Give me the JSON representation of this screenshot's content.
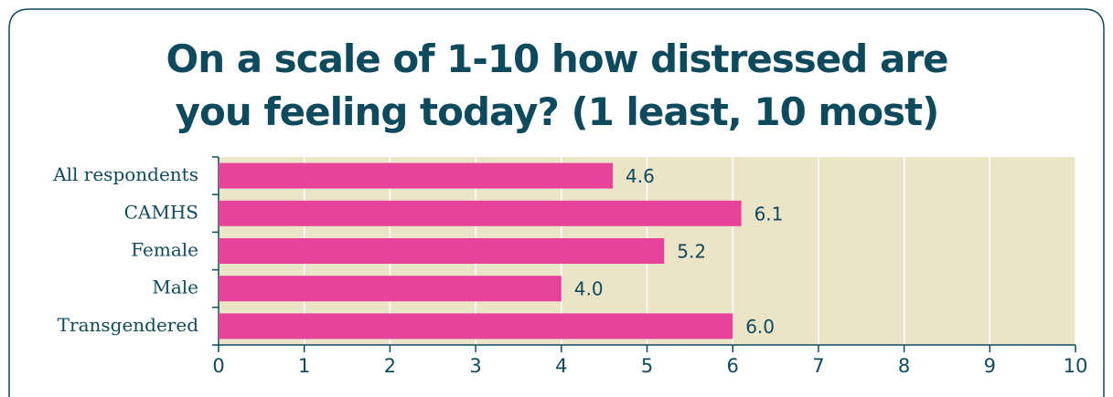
{
  "chart_data": {
    "type": "hbar",
    "title": "On a scale of 1-10 how distressed are you feeling today? (1 least, 10 most)",
    "categories": [
      "All respondents",
      "CAMHS",
      "Female",
      "Male",
      "Transgendered"
    ],
    "values": [
      4.6,
      6.1,
      5.2,
      4,
      6
    ],
    "value_labels": [
      "4.6",
      "6.1",
      "5.2",
      "4.0",
      "6.0"
    ],
    "color": "#e8439a",
    "xlim": [
      0,
      10
    ],
    "xticks": [
      0,
      1,
      2,
      3,
      4,
      5,
      6,
      7,
      8,
      9,
      10
    ],
    "grid": true
  }
}
